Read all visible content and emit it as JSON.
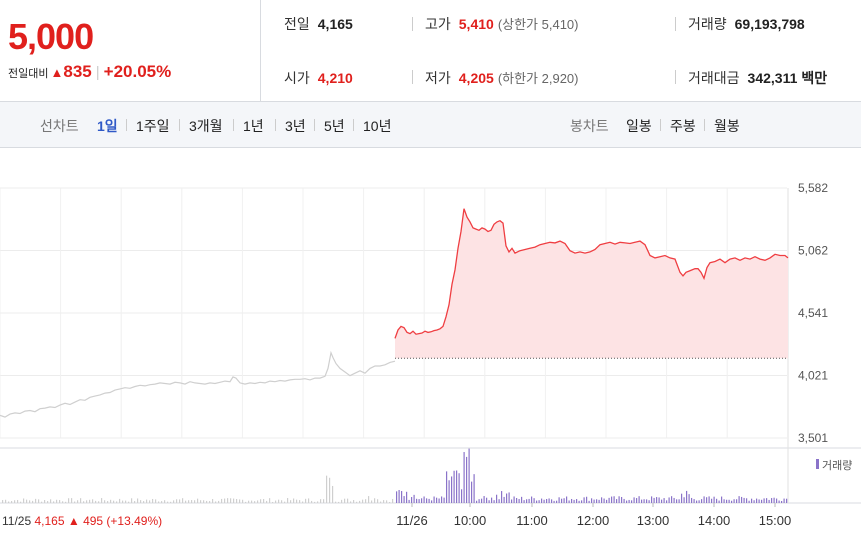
{
  "quote": {
    "price": "5,000",
    "change_label": "전일대비",
    "change_arrow": "▲",
    "change_value": "835",
    "change_pct": "+20.05%",
    "prev_label": "전일",
    "prev_value": "4,165",
    "open_label": "시가",
    "open_value": "4,210",
    "high_label": "고가",
    "high_value": "5,410",
    "upper_limit": "(상한가 5,410)",
    "low_label": "저가",
    "low_value": "4,205",
    "lower_limit": "(하한가 2,920)",
    "volume_label": "거래량",
    "volume_value": "69,193,798",
    "amount_label": "거래대금",
    "amount_value": "342,311",
    "amount_unit": "백만"
  },
  "periods": {
    "line_label": "선차트",
    "line_items": [
      "1일",
      "1주일",
      "3개월",
      "1년",
      "3년",
      "5년",
      "10년"
    ],
    "active": "1일",
    "candle_label": "봉차트",
    "candle_items": [
      "일봉",
      "주봉",
      "월봉"
    ]
  },
  "footer": {
    "prev_day_label": "11/25",
    "prev_close": "4,165",
    "prev_arrow": "▲",
    "prev_change": "495",
    "prev_pct": "(+13.49%)"
  },
  "chart_data": {
    "type": "line",
    "y_ticks": [
      "5,582",
      "5,062",
      "4,541",
      "4,021",
      "3,501"
    ],
    "ylim": [
      3501,
      5582
    ],
    "baseline": 4165,
    "x_ticks": [
      "11/26",
      "10:00",
      "11:00",
      "12:00",
      "13:00",
      "14:00",
      "15:00"
    ],
    "volume_legend": "거래량",
    "colors": {
      "today_line": "#ef3e42",
      "today_fill": "#fde3e4",
      "prev_line": "#cfcfcf",
      "volume_today": "#8a73c9",
      "volume_prev": "#cfcfcf"
    },
    "series": [
      {
        "session": "11/25",
        "points": [
          [
            0,
            3690
          ],
          [
            5,
            3675
          ],
          [
            10,
            3700
          ],
          [
            15,
            3710
          ],
          [
            20,
            3705
          ],
          [
            25,
            3725
          ],
          [
            30,
            3730
          ],
          [
            35,
            3720
          ],
          [
            40,
            3745
          ],
          [
            45,
            3750
          ],
          [
            50,
            3760
          ],
          [
            55,
            3755
          ],
          [
            60,
            3775
          ],
          [
            65,
            3790
          ],
          [
            70,
            3780
          ],
          [
            75,
            3800
          ],
          [
            80,
            3820
          ],
          [
            85,
            3815
          ],
          [
            90,
            3840
          ],
          [
            95,
            3850
          ],
          [
            100,
            3860
          ],
          [
            105,
            3875
          ],
          [
            110,
            3880
          ],
          [
            115,
            3900
          ],
          [
            120,
            3910
          ],
          [
            125,
            3920
          ],
          [
            130,
            3915
          ],
          [
            135,
            3930
          ],
          [
            140,
            3940
          ],
          [
            145,
            3935
          ],
          [
            150,
            3945
          ],
          [
            155,
            3950
          ],
          [
            160,
            3960
          ],
          [
            165,
            3955
          ],
          [
            170,
            3950
          ],
          [
            175,
            3965
          ],
          [
            180,
            3960
          ],
          [
            185,
            3950
          ],
          [
            190,
            3970
          ],
          [
            195,
            3960
          ],
          [
            200,
            3955
          ],
          [
            205,
            3950
          ],
          [
            210,
            3960
          ],
          [
            215,
            3955
          ],
          [
            220,
            3965
          ],
          [
            225,
            3975
          ],
          [
            230,
            3970
          ],
          [
            233,
            4010
          ],
          [
            236,
            4000
          ],
          [
            240,
            3960
          ],
          [
            245,
            3950
          ],
          [
            250,
            3960
          ],
          [
            255,
            3955
          ],
          [
            260,
            3965
          ],
          [
            265,
            3960
          ],
          [
            270,
            3975
          ],
          [
            275,
            3970
          ],
          [
            280,
            3980
          ],
          [
            285,
            3975
          ],
          [
            290,
            3985
          ],
          [
            295,
            3990
          ],
          [
            300,
            3990
          ],
          [
            305,
            3995
          ],
          [
            310,
            3985
          ],
          [
            315,
            4000
          ],
          [
            320,
            4000
          ],
          [
            325,
            4015
          ],
          [
            328,
            4080
          ],
          [
            331,
            4210
          ],
          [
            333,
            4170
          ],
          [
            336,
            4120
          ],
          [
            340,
            4080
          ],
          [
            345,
            4050
          ],
          [
            350,
            4020
          ],
          [
            355,
            4040
          ],
          [
            360,
            4060
          ],
          [
            365,
            4040
          ],
          [
            370,
            4080
          ],
          [
            375,
            4100
          ],
          [
            380,
            4100
          ],
          [
            385,
            4110
          ],
          [
            390,
            4130
          ],
          [
            395,
            4140
          ]
        ]
      },
      {
        "session": "11/26",
        "points": [
          [
            0,
            4330
          ],
          [
            3,
            4400
          ],
          [
            6,
            4430
          ],
          [
            9,
            4420
          ],
          [
            12,
            4380
          ],
          [
            15,
            4370
          ],
          [
            18,
            4390
          ],
          [
            21,
            4365
          ],
          [
            24,
            4370
          ],
          [
            27,
            4375
          ],
          [
            30,
            4390
          ],
          [
            33,
            4380
          ],
          [
            36,
            4385
          ],
          [
            39,
            4395
          ],
          [
            42,
            4400
          ],
          [
            45,
            4410
          ],
          [
            48,
            4430
          ],
          [
            51,
            4510
          ],
          [
            54,
            4610
          ],
          [
            57,
            4780
          ],
          [
            60,
            4900
          ],
          [
            63,
            5080
          ],
          [
            66,
            5220
          ],
          [
            69,
            5410
          ],
          [
            72,
            5340
          ],
          [
            75,
            5300
          ],
          [
            78,
            5250
          ],
          [
            81,
            5240
          ],
          [
            84,
            5230
          ],
          [
            87,
            5250
          ],
          [
            90,
            5240
          ],
          [
            93,
            5220
          ],
          [
            96,
            5230
          ],
          [
            99,
            5280
          ],
          [
            102,
            5300
          ],
          [
            105,
            5310
          ],
          [
            108,
            5290
          ],
          [
            111,
            5100
          ],
          [
            114,
            5050
          ],
          [
            117,
            5080
          ],
          [
            120,
            5040
          ],
          [
            125,
            5060
          ],
          [
            130,
            5070
          ],
          [
            135,
            5080
          ],
          [
            140,
            5090
          ],
          [
            145,
            5110
          ],
          [
            150,
            5120
          ],
          [
            155,
            5130
          ],
          [
            160,
            5125
          ],
          [
            165,
            5140
          ],
          [
            170,
            5120
          ],
          [
            175,
            5060
          ],
          [
            180,
            5040
          ],
          [
            185,
            5050
          ],
          [
            190,
            5040
          ],
          [
            195,
            5050
          ],
          [
            200,
            5070
          ],
          [
            205,
            5110
          ],
          [
            210,
            5120
          ],
          [
            215,
            5130
          ],
          [
            220,
            5115
          ],
          [
            225,
            5130
          ],
          [
            230,
            5125
          ],
          [
            235,
            5120
          ],
          [
            240,
            5130
          ],
          [
            245,
            5140
          ],
          [
            250,
            5110
          ],
          [
            255,
            5020
          ],
          [
            260,
            5000
          ],
          [
            265,
            5010
          ],
          [
            270,
            5020
          ],
          [
            275,
            5000
          ],
          [
            280,
            4990
          ],
          [
            285,
            4880
          ],
          [
            288,
            4850
          ],
          [
            291,
            4880
          ],
          [
            294,
            4890
          ],
          [
            297,
            4900
          ],
          [
            300,
            4910
          ],
          [
            303,
            4910
          ],
          [
            306,
            4880
          ],
          [
            309,
            4830
          ],
          [
            312,
            4920
          ],
          [
            315,
            4960
          ],
          [
            320,
            4970
          ],
          [
            325,
            4990
          ],
          [
            330,
            4960
          ],
          [
            335,
            4990
          ],
          [
            340,
            5000
          ],
          [
            345,
            4980
          ],
          [
            350,
            5000
          ],
          [
            355,
            4990
          ],
          [
            360,
            5010
          ],
          [
            365,
            4990
          ],
          [
            370,
            4980
          ],
          [
            375,
            5000
          ],
          [
            380,
            5030
          ],
          [
            385,
            5020
          ],
          [
            390,
            5020
          ],
          [
            393,
            5000
          ]
        ]
      }
    ]
  }
}
